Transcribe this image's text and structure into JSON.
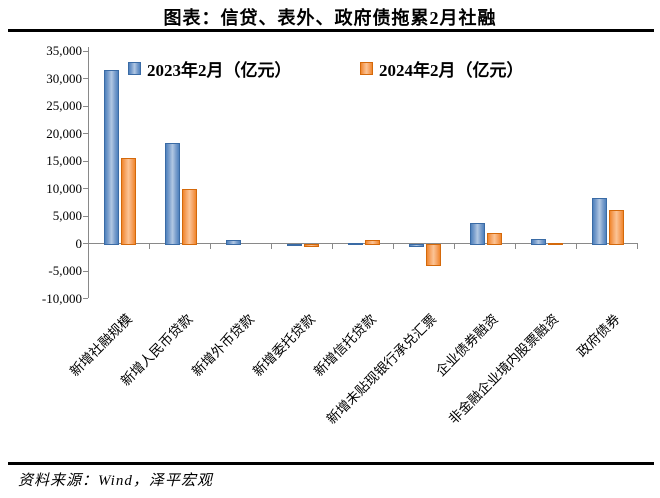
{
  "page": {
    "title": "图表：信贷、表外、政府债拖累2月社融",
    "source_note": "资料来源：Wind，泽平宏观"
  },
  "chart_data": {
    "type": "bar",
    "title": "图表：信贷、表外、政府债拖累2月社融",
    "unit": "亿元",
    "categories": [
      "新增社融规模",
      "新增人民币贷款",
      "新增外币贷款",
      "新增委托贷款",
      "新增信托贷款",
      "新增未贴现银行承兑汇票",
      "企业债券融资",
      "非金融企业境内股票融资",
      "政府债券"
    ],
    "series": [
      {
        "name": "2023年2月（亿元）",
        "color": "#4f81bd",
        "values": [
          31500,
          18200,
          500,
          -50,
          50,
          -100,
          3650,
          650,
          8100
        ]
      },
      {
        "name": "2024年2月（亿元）",
        "color": "#f0862c",
        "values": [
          15500,
          9800,
          0,
          -150,
          600,
          -3700,
          1900,
          80,
          6050
        ]
      }
    ],
    "y_axis": {
      "min": -10000,
      "max": 35000,
      "step": 5000,
      "ticks": [
        35000,
        30000,
        25000,
        20000,
        15000,
        10000,
        5000,
        0,
        -5000,
        -10000
      ],
      "tick_labels": [
        "35,000",
        "30,000",
        "25,000",
        "20,000",
        "15,000",
        "10,000",
        "5,000",
        "0",
        "-5,000",
        "-10,000"
      ]
    },
    "legend_position": "top",
    "grid": false
  }
}
